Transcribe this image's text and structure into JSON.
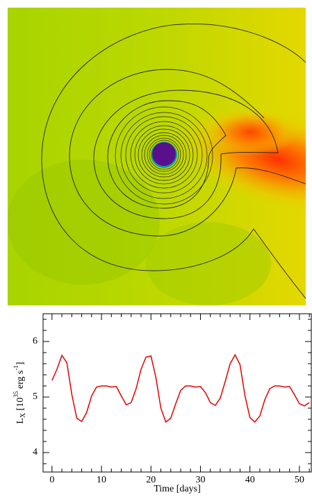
{
  "chart_data": {
    "type": "line",
    "xlabel": "Time [days]",
    "ylabel": {
      "base": "L",
      "sub": "X",
      "mid": " [10",
      "sup": "35",
      "rest": " erg s",
      "sup2": "-1",
      "end": "]"
    },
    "x": [
      0,
      1,
      2,
      3,
      4,
      5,
      6,
      7,
      8,
      9,
      10,
      11,
      12,
      13,
      14,
      15,
      16,
      17,
      18,
      19,
      20,
      21,
      22,
      23,
      24,
      25,
      26,
      27,
      28,
      29,
      30,
      31,
      32,
      33,
      34,
      35,
      36,
      37,
      38,
      39,
      40,
      41,
      42,
      43,
      44,
      45,
      46,
      47,
      48,
      49,
      50,
      51,
      52
    ],
    "series": [
      {
        "color": "#e00000",
        "values": [
          5.3,
          5.5,
          5.75,
          5.62,
          5.05,
          4.62,
          4.56,
          4.72,
          5.02,
          5.18,
          5.2,
          5.2,
          5.18,
          5.19,
          5.02,
          4.86,
          4.9,
          5.15,
          5.5,
          5.72,
          5.74,
          5.35,
          4.8,
          4.55,
          4.62,
          4.88,
          5.12,
          5.2,
          5.2,
          5.18,
          5.19,
          5.08,
          4.9,
          4.85,
          4.98,
          5.28,
          5.6,
          5.76,
          5.58,
          5.02,
          4.63,
          4.55,
          4.66,
          4.95,
          5.15,
          5.2,
          5.2,
          5.18,
          5.19,
          5.04,
          4.88,
          4.84,
          4.9
        ]
      }
    ],
    "xlim": [
      -1.8,
      52.4
    ],
    "ylim": [
      3.65,
      6.5
    ],
    "xticks": [
      0,
      10,
      20,
      30,
      40,
      50
    ],
    "yticks": [
      4,
      5,
      6
    ],
    "xminorticks": [
      2,
      4,
      6,
      8,
      12,
      14,
      16,
      18,
      22,
      24,
      26,
      28,
      32,
      34,
      36,
      38,
      42,
      44,
      46,
      48,
      52
    ],
    "yminorticks": [
      3.8,
      4.2,
      4.4,
      4.6,
      4.8,
      5.2,
      5.4,
      5.6,
      5.8,
      6.2,
      6.4
    ]
  }
}
